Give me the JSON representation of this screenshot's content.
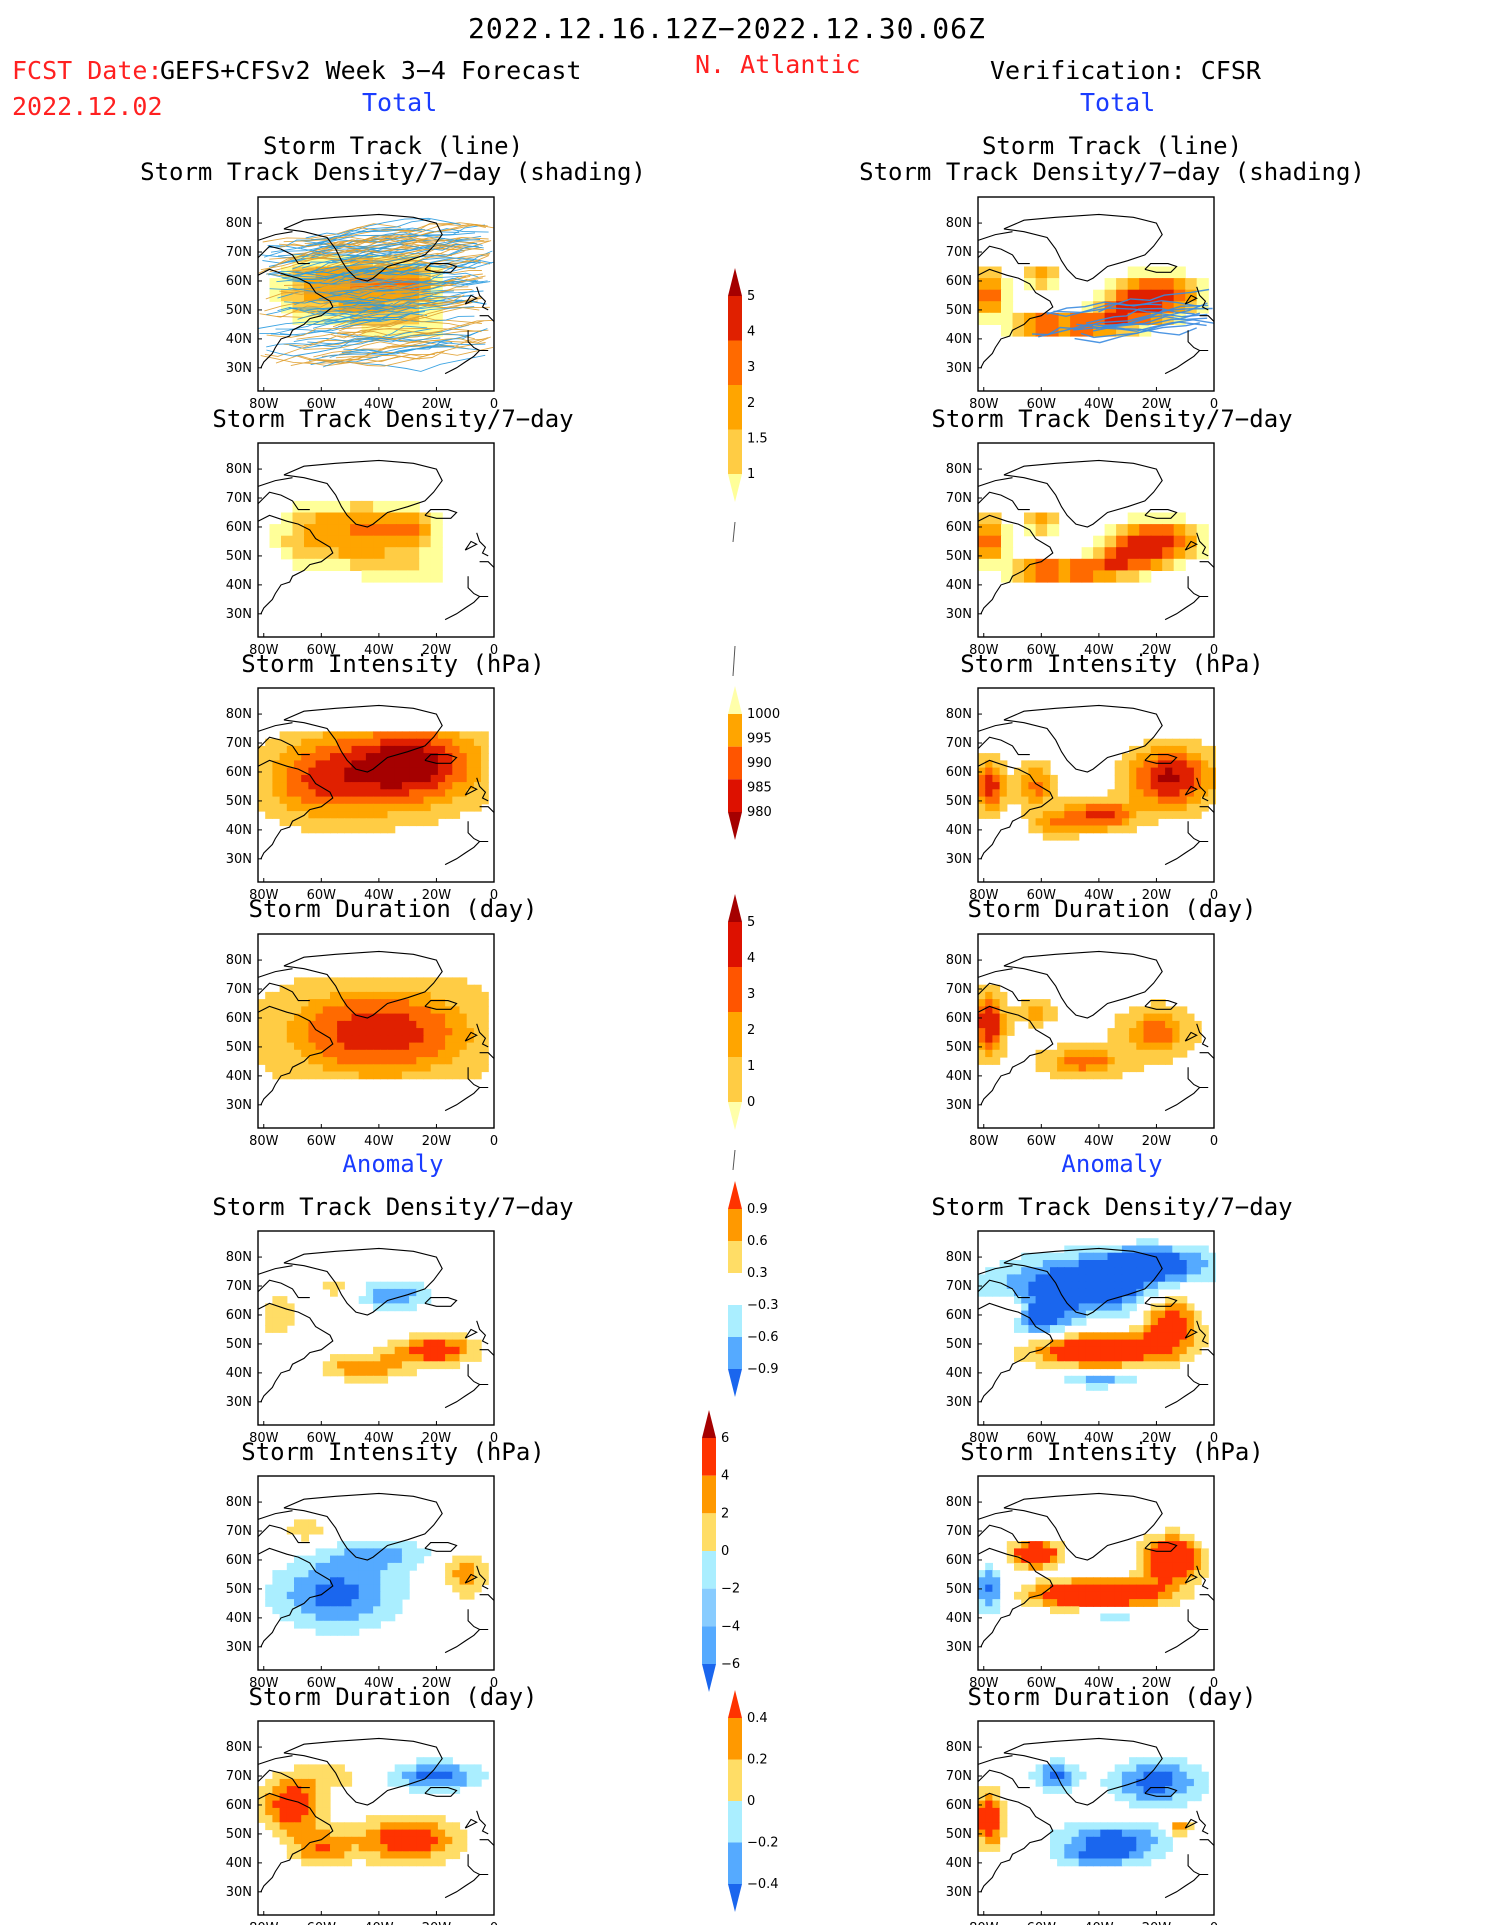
{
  "header": {
    "date_range": "2022.12.16.12Z−2022.12.30.06Z",
    "fcst_label": "FCST Date:",
    "fcst_date": "2022.12.02",
    "model": "GEFS+CFSv2 Week 3−4 Forecast",
    "region": "N. Atlantic",
    "verification": "Verification: CFSR"
  },
  "columns": {
    "left_total": "Total",
    "right_total": "Total",
    "left_anomaly": "Anomaly",
    "right_anomaly": "Anomaly"
  },
  "panel_titles": {
    "track_line": "Storm Track (line)",
    "track_shading": "Storm Track Density/7−day (shading)",
    "density": "Storm Track Density/7−day",
    "intensity": "Storm Intensity (hPa)",
    "duration": "Storm Duration (day)"
  },
  "map_axes": {
    "lat_labels": [
      "80N",
      "70N",
      "60N",
      "50N",
      "40N",
      "30N"
    ],
    "lon_labels": [
      "80W",
      "60W",
      "40W",
      "20W",
      "0"
    ]
  },
  "colorbars": {
    "density_total": {
      "labels": [
        "5",
        "4",
        "3",
        "2",
        "1.5",
        "1"
      ],
      "colors": [
        "#a50000",
        "#e02000",
        "#ff6a00",
        "#ffa500",
        "#ffcc44",
        "#ffff99"
      ]
    },
    "intensity_total": {
      "labels": [
        "1000",
        "995",
        "990",
        "985",
        "980"
      ],
      "colors": [
        "#ffffaa",
        "#ffa500",
        "#ff5500",
        "#dd1100",
        "#a50000"
      ]
    },
    "duration_total": {
      "labels": [
        "5",
        "4",
        "3",
        "2",
        "1",
        "0"
      ],
      "colors": [
        "#a50000",
        "#dd1100",
        "#ff5500",
        "#ffa500",
        "#ffcc44",
        "#ffffaa"
      ]
    },
    "density_anom": {
      "labels": [
        "0.9",
        "0.6",
        "0.3",
        "−0.3",
        "−0.6",
        "−0.9"
      ],
      "colors": [
        "#ff3300",
        "#ff9900",
        "#ffdd66",
        "#ffffff",
        "#aaeeff",
        "#55aaff",
        "#1a66ee"
      ]
    },
    "intensity_anom": {
      "labels": [
        "6",
        "4",
        "2",
        "0",
        "−2",
        "−4",
        "−6"
      ],
      "colors": [
        "#a50000",
        "#ff3300",
        "#ff9900",
        "#ffdd66",
        "#aaeeff",
        "#88ccff",
        "#55aaff",
        "#1a66ee"
      ]
    },
    "duration_anom": {
      "labels": [
        "0.4",
        "0.2",
        "0",
        "−0.2",
        "−0.4"
      ],
      "colors": [
        "#ff3300",
        "#ff9900",
        "#ffdd66",
        "#aaeeff",
        "#55aaff",
        "#1a66ee"
      ]
    }
  }
}
